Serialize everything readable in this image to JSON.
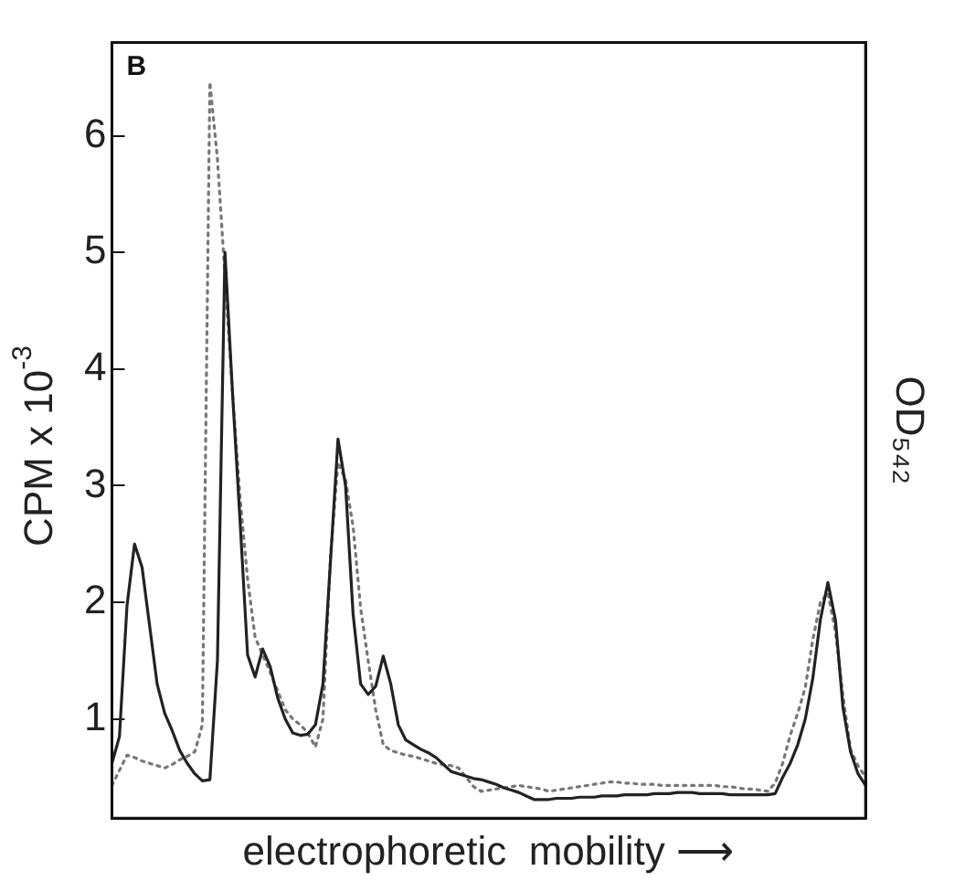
{
  "chart_data": {
    "type": "line",
    "ylabel": "CPM x 10$^{-3}$",
    "y2label": "OD₅₄₂",
    "xlabel": "electrophoretic  mobility ⟶",
    "annotations": [
      "B"
    ],
    "categories": [
      null,
      null,
      null,
      null,
      null,
      null,
      null,
      null,
      null,
      null,
      null,
      null,
      null,
      null,
      null,
      null,
      null,
      null,
      null,
      null,
      null,
      null,
      null,
      null,
      null,
      null,
      null,
      null,
      null,
      null,
      null,
      null,
      null,
      null,
      null,
      null,
      null,
      null,
      null,
      null,
      null,
      null,
      null,
      null,
      null,
      null,
      null,
      null,
      null,
      null,
      null,
      null,
      null,
      null,
      null,
      null,
      null,
      null,
      null,
      null,
      null,
      null,
      null,
      null,
      null,
      null,
      null,
      null,
      null,
      null,
      null,
      null,
      null,
      null,
      null,
      null,
      null,
      null,
      null,
      null,
      null,
      null,
      null,
      null,
      null,
      null,
      null,
      null,
      null,
      null,
      null,
      null,
      null,
      null,
      null,
      null,
      null,
      null,
      null,
      null,
      null
    ],
    "ylim": [
      0.15,
      6.8
    ],
    "yticks": [
      1,
      2,
      3,
      4,
      5,
      6
    ],
    "tick_labels": "y",
    "grid": false,
    "legend": false,
    "marker": "none",
    "series": [
      {
        "color": "#222222",
        "line_style": "solid",
        "values": [
          0.62,
          0.85,
          1.97,
          2.5,
          2.3,
          1.8,
          1.3,
          1.05,
          0.9,
          0.73,
          0.62,
          0.53,
          0.47,
          0.48,
          1.5,
          5.0,
          3.8,
          2.7,
          1.55,
          1.36,
          1.6,
          1.45,
          1.18,
          1.0,
          0.88,
          0.86,
          0.87,
          0.95,
          1.3,
          2.35,
          3.4,
          3.0,
          1.9,
          1.3,
          1.21,
          1.28,
          1.54,
          1.3,
          0.95,
          0.82,
          0.78,
          0.74,
          0.71,
          0.67,
          0.61,
          0.55,
          0.53,
          0.51,
          0.49,
          0.48,
          0.46,
          0.44,
          0.41,
          0.39,
          0.37,
          0.34,
          0.31,
          0.31,
          0.31,
          0.32,
          0.32,
          0.32,
          0.33,
          0.33,
          0.33,
          0.34,
          0.34,
          0.34,
          0.35,
          0.35,
          0.35,
          0.35,
          0.36,
          0.36,
          0.36,
          0.37,
          0.37,
          0.37,
          0.36,
          0.36,
          0.36,
          0.36,
          0.35,
          0.35,
          0.35,
          0.35,
          0.35,
          0.35,
          0.36,
          0.5,
          0.62,
          0.78,
          1.0,
          1.35,
          1.85,
          2.17,
          1.85,
          1.1,
          0.72,
          0.53,
          0.43
        ]
      },
      {
        "color": "#777777",
        "line_style": "dotted",
        "values": [
          0.43,
          0.56,
          0.69,
          0.67,
          0.64,
          0.62,
          0.6,
          0.58,
          0.61,
          0.65,
          0.68,
          0.72,
          0.95,
          6.46,
          5.8,
          4.8,
          3.8,
          2.9,
          2.2,
          1.7,
          1.55,
          1.4,
          1.24,
          1.08,
          1.0,
          0.95,
          0.88,
          0.76,
          1.0,
          2.4,
          3.2,
          3.05,
          2.65,
          1.95,
          1.5,
          1.08,
          0.78,
          0.73,
          0.71,
          0.69,
          0.68,
          0.66,
          0.64,
          0.62,
          0.61,
          0.6,
          0.58,
          0.5,
          0.42,
          0.38,
          0.39,
          0.4,
          0.41,
          0.42,
          0.43,
          0.42,
          0.41,
          0.4,
          0.38,
          0.39,
          0.4,
          0.41,
          0.42,
          0.43,
          0.44,
          0.45,
          0.46,
          0.46,
          0.45,
          0.45,
          0.44,
          0.44,
          0.44,
          0.43,
          0.43,
          0.43,
          0.43,
          0.43,
          0.43,
          0.43,
          0.43,
          0.42,
          0.42,
          0.41,
          0.4,
          0.4,
          0.39,
          0.38,
          0.45,
          0.62,
          0.86,
          1.05,
          1.27,
          1.68,
          2.0,
          2.08,
          1.75,
          1.2,
          0.74,
          0.6,
          0.5
        ]
      }
    ]
  }
}
